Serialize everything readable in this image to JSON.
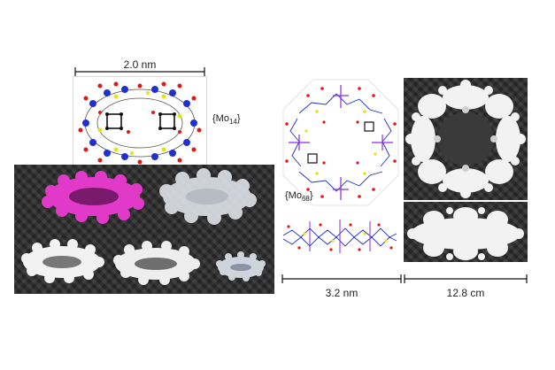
{
  "left_scale": {
    "label": "2.0 nm"
  },
  "mo14": {
    "prefix": "{Mo",
    "sub": "14",
    "suffix": "}"
  },
  "mo68": {
    "prefix": "{Mo",
    "sub": "68",
    "suffix": "}"
  },
  "bottom_scales": {
    "left": "3.2 nm",
    "right": "12.8 cm"
  },
  "colors": {
    "mo_atom": "#1f2fd0",
    "oxygen": "#e01818",
    "sulfur": "#e6e21a",
    "carbon": "#111111",
    "magenta_model": "#e23ac8",
    "white_model": "#f2f2f2"
  },
  "icons": [
    "scale-bar-icon"
  ]
}
